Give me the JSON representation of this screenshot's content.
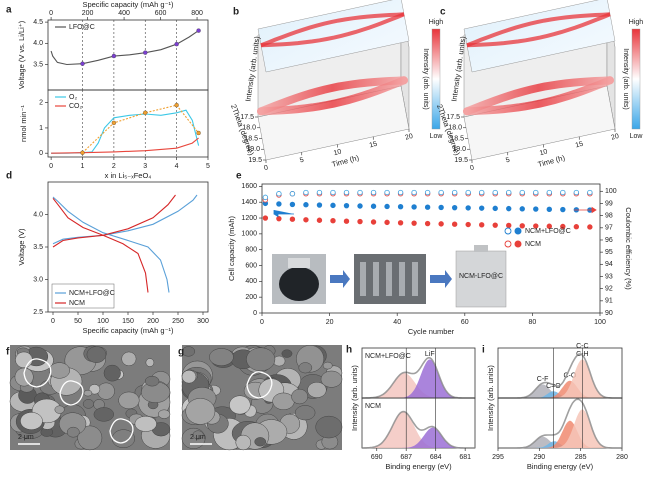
{
  "chart_data": [
    {
      "type": "line",
      "label": "a",
      "x2_label": "Specific capacity (mAh g⁻¹)",
      "x2lim": [
        -17,
        860
      ],
      "x2ticks": [
        0,
        200,
        400,
        600,
        800
      ],
      "xlim": [
        -0.1,
        5
      ],
      "ylabel": "Voltage (V vs. Li/Li⁺)",
      "ylim": [
        2.9,
        4.55
      ],
      "yticks": [
        3.5,
        {
          "value": 4,
          "label": "4.0"
        },
        4.5
      ],
      "legend": "upper left",
      "guides": [
        1,
        2,
        3,
        4
      ],
      "series": [
        {
          "name": "LFO@C",
          "color": "#555555",
          "x": [
            0,
            0.05,
            0.2,
            0.5,
            1,
            1.5,
            2,
            2.5,
            3,
            3.5,
            4,
            4.4,
            4.7
          ],
          "values": [
            3.82,
            3.7,
            3.55,
            3.5,
            3.52,
            3.6,
            3.7,
            3.73,
            3.78,
            3.85,
            3.98,
            4.15,
            4.3
          ]
        },
        {
          "color": "#7b3fd0",
          "marker": true,
          "line": false,
          "x": [
            1,
            2,
            3,
            4,
            4.7
          ],
          "values": [
            3.52,
            3.7,
            3.78,
            3.98,
            4.3
          ]
        }
      ]
    },
    {
      "type": "line",
      "xlabel": "x in Li₅₋ₓFeO₄",
      "xlim": [
        -0.1,
        5
      ],
      "xticks": [
        0,
        1,
        2,
        3,
        4,
        5
      ],
      "ylabel": "nmol min⁻¹",
      "ylim": [
        -0.15,
        2.5
      ],
      "yticks": [
        0,
        1,
        2
      ],
      "legend": "upper left",
      "guides": [
        1,
        2,
        3,
        4
      ],
      "series": [
        {
          "name": "O₂",
          "color": "#3cc8e6",
          "x": [
            0,
            0.5,
            1,
            1.3,
            1.5,
            1.7,
            2,
            2.5,
            3,
            3.5,
            4,
            4.3,
            4.5,
            4.7
          ],
          "values": [
            0,
            0,
            0.02,
            0.05,
            0.4,
            1.0,
            1.4,
            1.5,
            1.55,
            1.5,
            1.6,
            1.7,
            1.3,
            0.3
          ]
        },
        {
          "name": "CO₂",
          "color": "#e8463c",
          "x": [
            0,
            1,
            2,
            3,
            4,
            4.5,
            4.7
          ],
          "values": [
            0,
            0.02,
            0.05,
            0.1,
            0.2,
            0.4,
            0.6
          ]
        },
        {
          "color": "#f0a030",
          "marker": true,
          "dash": true,
          "x": [
            1,
            2,
            3,
            4,
            4.7
          ],
          "values": [
            0.02,
            1.2,
            1.6,
            1.9,
            0.8
          ]
        }
      ]
    },
    {
      "type": "surface",
      "label": "b",
      "zlabel": "Intensity (arb. units)",
      "xlabel": "2Theta (degree)",
      "ylabel": "Time (h)",
      "xticks": [
        17.5,
        {
          "value": 18,
          "label": "18.0"
        },
        18.5,
        {
          "value": 19,
          "label": "19.0"
        },
        19.5
      ],
      "yticks": [
        0,
        5,
        10,
        15,
        20
      ],
      "colorbar": {
        "label": "Intensity (arb. units)",
        "high": "High",
        "low": "Low"
      }
    },
    {
      "type": "surface",
      "label": "c",
      "zlabel": "Intensity (arb. units)",
      "xlabel": "2Theta (degree)",
      "ylabel": "Time (h)",
      "xticks": [
        17.5,
        {
          "value": 18,
          "label": "18.0"
        },
        18.5,
        {
          "value": 19,
          "label": "19.0"
        },
        19.5
      ],
      "yticks": [
        0,
        5,
        10,
        15,
        20
      ],
      "colorbar": {
        "label": "Intensity (arb. units)",
        "high": "High",
        "low": "Low"
      }
    },
    {
      "type": "line",
      "label": "d",
      "xlabel": "Specific capacity (mAh g⁻¹)",
      "ylabel": "Voltage (V)",
      "xlim": [
        -10,
        310
      ],
      "xticks": [
        0,
        50,
        100,
        150,
        200,
        250,
        300
      ],
      "ylim": [
        2.5,
        4.5
      ],
      "yticks": [
        2.5,
        {
          "value": 3,
          "label": "3.0"
        },
        3.5,
        {
          "value": 4,
          "label": "4.0"
        }
      ],
      "legend": "lower left",
      "series": [
        {
          "name": "NCM+LFO@C",
          "color": "#5aa0d8",
          "x": [
            0,
            20,
            50,
            100,
            150,
            200,
            250,
            280,
            288,
            null,
            0,
            10,
            30,
            60,
            100,
            150,
            190,
            215,
            228,
            232
          ],
          "values": [
            3.55,
            3.62,
            3.65,
            3.68,
            3.75,
            3.85,
            4.05,
            4.22,
            4.3,
            null,
            4.27,
            4.2,
            4.05,
            3.88,
            3.72,
            3.6,
            3.5,
            3.3,
            3.0,
            2.8
          ]
        },
        {
          "name": "NCM",
          "color": "#d62728",
          "x": [
            0,
            20,
            50,
            100,
            150,
            200,
            230,
            245,
            null,
            0,
            10,
            30,
            60,
            100,
            140,
            170,
            185,
            190
          ],
          "values": [
            3.5,
            3.6,
            3.64,
            3.68,
            3.78,
            3.95,
            4.15,
            4.3,
            null,
            4.25,
            4.15,
            3.95,
            3.8,
            3.68,
            3.55,
            3.4,
            3.1,
            2.8
          ]
        }
      ]
    },
    {
      "type": "scatter",
      "label": "e",
      "xlabel": "Cycle number",
      "xlim": [
        0,
        100
      ],
      "xticks": [
        0,
        20,
        40,
        60,
        80,
        100
      ],
      "ylabel": "Cell capacity (mAh)",
      "ylim": [
        0,
        1630
      ],
      "yticks": [
        0,
        200,
        400,
        600,
        800,
        1000,
        1200,
        1400,
        1600
      ],
      "y2label": "Coulombic efficiency (%)",
      "y2lim": [
        90,
        100.6
      ],
      "y2ticks": [
        90,
        91,
        92,
        93,
        94,
        95,
        96,
        97,
        98,
        99,
        100
      ],
      "inset_label": "NCM-LFO@C",
      "x": [
        1,
        5,
        9,
        13,
        17,
        21,
        25,
        29,
        33,
        37,
        41,
        45,
        49,
        53,
        57,
        61,
        65,
        69,
        73,
        77,
        81,
        85,
        89,
        93,
        97
      ],
      "series": [
        {
          "name": "NCM+LFO@C",
          "color": "#1f7fd0",
          "values": [
            1385,
            1378,
            1372,
            1368,
            1364,
            1360,
            1356,
            1352,
            1349,
            1346,
            1343,
            1340,
            1337,
            1334,
            1331,
            1328,
            1325,
            1322,
            1319,
            1316,
            1313,
            1310,
            1307,
            1304,
            1301
          ]
        },
        {
          "name": "NCM",
          "color": "#e8403a",
          "values": [
            1200,
            1192,
            1185,
            1178,
            1172,
            1166,
            1160,
            1155,
            1150,
            1145,
            1140,
            1135,
            1130,
            1126,
            1122,
            1118,
            1114,
            1110,
            1106,
            1102,
            1099,
            1096,
            1093,
            1090,
            1087
          ]
        },
        {
          "color": "#e8403a",
          "axis": "y2",
          "hollow": true,
          "values": [
            99.3,
            99.7,
            99.8,
            99.8,
            99.8,
            99.8,
            99.8,
            99.8,
            99.8,
            99.8,
            99.8,
            99.8,
            99.8,
            99.8,
            99.8,
            99.8,
            99.8,
            99.8,
            99.8,
            99.8,
            99.8,
            99.8,
            99.8,
            99.8,
            99.8
          ]
        },
        {
          "color": "#3aa0e0",
          "axis": "y2",
          "hollow": true,
          "values": [
            99.5,
            99.8,
            99.8,
            99.9,
            99.9,
            99.9,
            99.9,
            99.9,
            99.9,
            99.9,
            99.9,
            99.9,
            99.9,
            99.9,
            99.9,
            99.9,
            99.9,
            99.9,
            99.9,
            99.9,
            99.9,
            99.9,
            99.9,
            99.9,
            99.9
          ]
        }
      ]
    },
    {
      "type": "peaks",
      "label": "h",
      "xlabel": "Binding energy (eV)",
      "ylabel": "Intensity (arb. units)",
      "xlim": [
        691.5,
        680
      ],
      "ylim": [
        0,
        1.1
      ],
      "xticks": [
        690,
        687,
        684,
        681
      ],
      "guides": [
        687,
        684
      ],
      "panels": [
        {
          "title": "NCM+LFO@C",
          "peaks": [
            {
              "center": 687.2,
              "height": 0.55,
              "width": 1.1,
              "color": "#f3c6c0"
            },
            {
              "center": 684.6,
              "height": 0.85,
              "width": 0.9,
              "color": "#9b6fd6",
              "labels": [
                "LiF"
              ]
            }
          ]
        },
        {
          "title": "NCM",
          "peaks": [
            {
              "center": 687.3,
              "height": 0.8,
              "width": 1.1,
              "color": "#f3c6c0"
            },
            {
              "center": 684.3,
              "height": 0.45,
              "width": 0.9,
              "color": "#9b6fd6"
            }
          ]
        }
      ]
    },
    {
      "type": "peaks",
      "label": "i",
      "xlabel": "Binding energy (eV)",
      "ylabel": "Intensity (arb. units)",
      "xlim": [
        295,
        280
      ],
      "ylim": [
        0,
        1.1
      ],
      "xticks": [
        295,
        290,
        285,
        280
      ],
      "guides": [
        288.3,
        284.8
      ],
      "panels": [
        {
          "peaks": [
            {
              "center": 289.6,
              "height": 0.3,
              "width": 0.9,
              "color": "#b0b0b8",
              "labels": [
                "C-F"
              ]
            },
            {
              "center": 288.3,
              "height": 0.15,
              "width": 0.7,
              "color": "#6fb6e8",
              "labels": [
                "C=O"
              ]
            },
            {
              "center": 286.3,
              "height": 0.38,
              "width": 0.9,
              "color": "#f08a70",
              "labels": [
                "C-O"
              ]
            },
            {
              "center": 284.8,
              "height": 0.85,
              "width": 1.0,
              "color": "#f6c6b8",
              "labels": [
                "C-C",
                "C-H"
              ]
            }
          ]
        },
        {
          "peaks": [
            {
              "center": 289.6,
              "height": 0.25,
              "width": 0.9,
              "color": "#b0b0b8"
            },
            {
              "center": 288.2,
              "height": 0.15,
              "width": 0.7,
              "color": "#6fb6e8"
            },
            {
              "center": 286.3,
              "height": 0.6,
              "width": 0.9,
              "color": "#f08a70"
            },
            {
              "center": 284.8,
              "height": 0.85,
              "width": 1.0,
              "color": "#f6c6b8"
            }
          ]
        }
      ]
    }
  ],
  "images": [
    {
      "label": "f",
      "scale": "2 μm"
    },
    {
      "label": "g",
      "scale": "2 μm"
    }
  ]
}
